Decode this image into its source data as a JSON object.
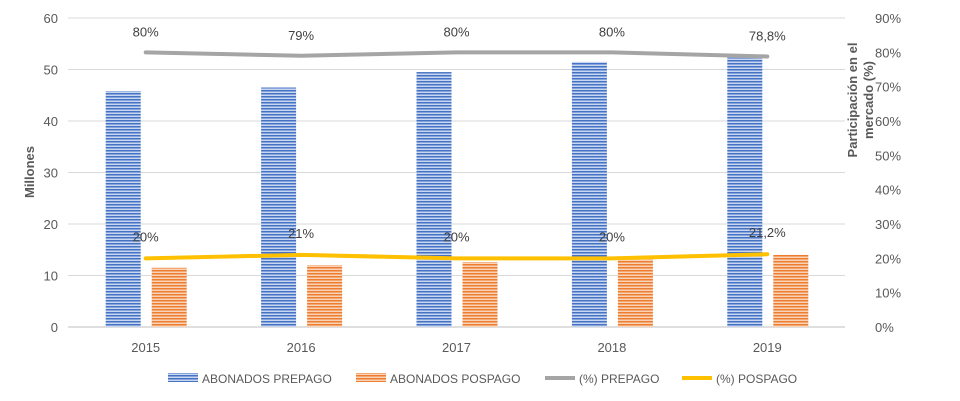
{
  "chart_data": {
    "type": "bar+line",
    "categories": [
      "2015",
      "2016",
      "2017",
      "2018",
      "2019"
    ],
    "ylabel": "Millones",
    "y2label": "Participación en el mercado (%)",
    "y2label_lines": [
      "Participación en el",
      "mercado (%)"
    ],
    "ylim": [
      0,
      60
    ],
    "yticks": [
      "0",
      "10",
      "20",
      "30",
      "40",
      "50",
      "60"
    ],
    "y2lim": [
      0,
      90
    ],
    "y2ticks": [
      "0%",
      "10%",
      "20%",
      "30%",
      "40%",
      "50%",
      "60%",
      "70%",
      "80%",
      "90%"
    ],
    "bars": [
      {
        "name": "ABONADOS PREPAGO",
        "color": "#4472C4",
        "values": [
          45.8,
          46.5,
          49.5,
          51.5,
          52.3
        ]
      },
      {
        "name": "ABONADOS POSPAGO",
        "color": "#ED7D31",
        "values": [
          11.5,
          12.0,
          12.6,
          13.3,
          14.0
        ]
      }
    ],
    "lines": [
      {
        "name": "(%) PREPAGO",
        "color": "#A5A5A5",
        "values": [
          80,
          79,
          80,
          80,
          78.8
        ],
        "labels": [
          "80%",
          "79%",
          "80%",
          "80%",
          "78,8%"
        ]
      },
      {
        "name": "(%) POSPAGO",
        "color": "#FFC000",
        "values": [
          20,
          21,
          20,
          20,
          21.2
        ],
        "labels": [
          "20%",
          "21%",
          "20%",
          "20%",
          "21,2%"
        ]
      }
    ],
    "grid": true,
    "legend": "bottom"
  }
}
